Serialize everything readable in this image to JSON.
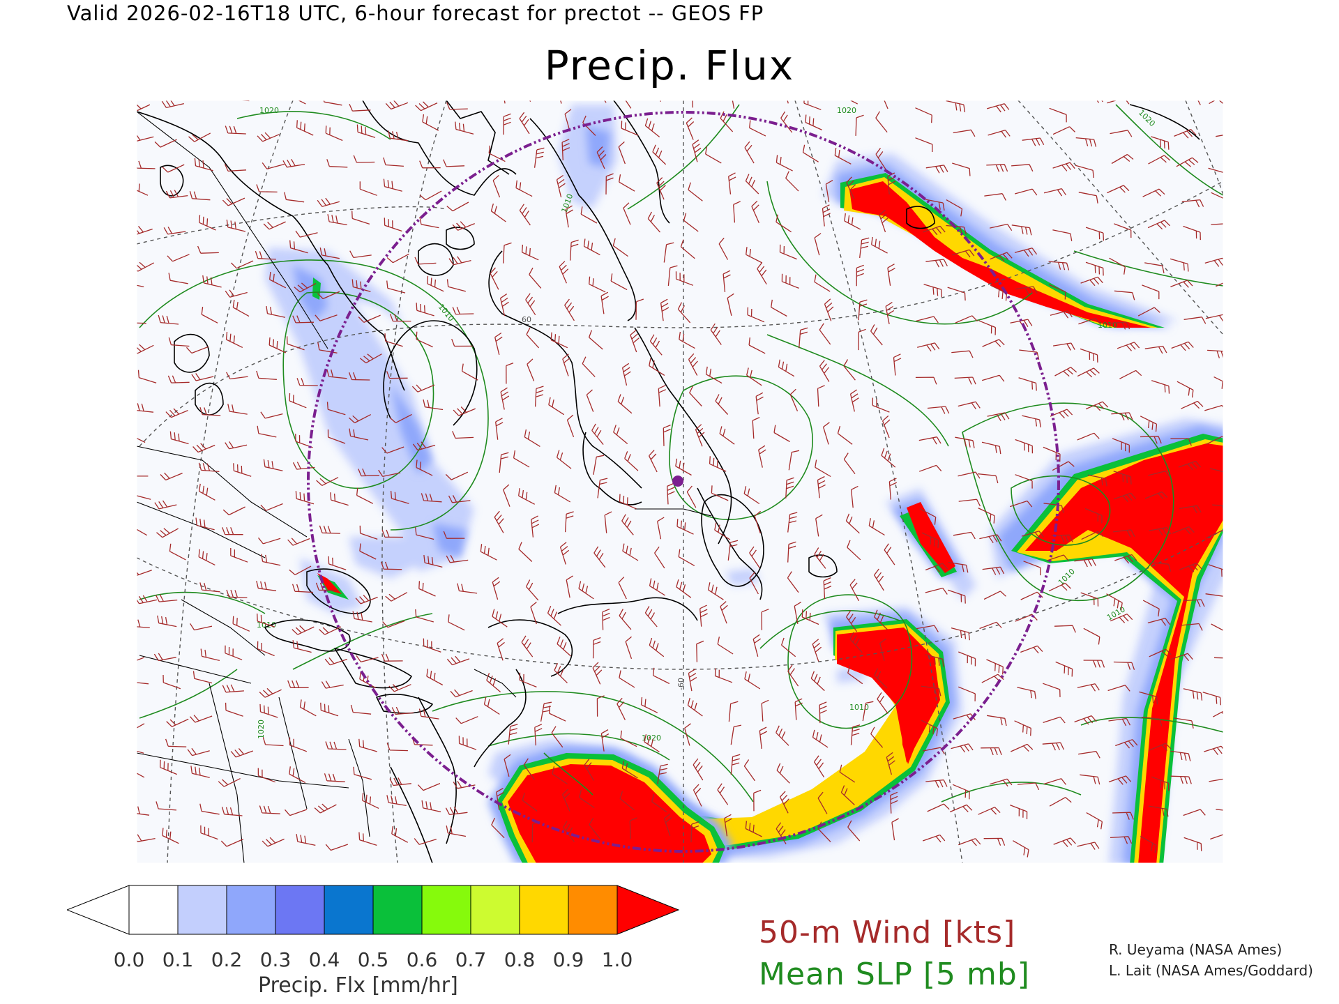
{
  "header": {
    "valid": "Valid 2026-02-16T18 UTC, 6-hour forecast for prectot -- GEOS FP",
    "title": "Precip. Flux"
  },
  "map": {
    "region": "Northeastern North America and North Atlantic",
    "contour_labels": [
      "1020",
      "1010",
      "1010",
      "1020",
      "1010",
      "1020",
      "1010",
      "1010",
      "1020",
      "1020",
      "1010",
      "1010"
    ],
    "graticule_labels": [
      "60",
      "-60"
    ],
    "colors": {
      "land_fill": "#f7f9fd",
      "coastline": "#000000",
      "slp_contour": "#1f8b1f",
      "wind_barb": "#a52a2a",
      "graticule": "#555555",
      "target_circle": "#7b1f8f"
    }
  },
  "colorbar": {
    "ticks": [
      "0.0",
      "0.1",
      "0.2",
      "0.3",
      "0.4",
      "0.5",
      "0.6",
      "0.7",
      "0.8",
      "0.9",
      "1.0"
    ],
    "colors": [
      "#ffffff",
      "#c3cffd",
      "#8fa7fb",
      "#6c77f3",
      "#0a76cf",
      "#0ac03a",
      "#86fa0c",
      "#cdfb30",
      "#ffd800",
      "#ff8c00",
      "#ff0000"
    ],
    "label": "Precip. Flx [mm/hr]"
  },
  "legend": {
    "wind": "50-m Wind [kts]",
    "slp": "Mean SLP [5 mb]"
  },
  "credits": {
    "line1": "R. Ueyama (NASA Ames)",
    "line2": "L. Lait (NASA Ames/Goddard)"
  }
}
